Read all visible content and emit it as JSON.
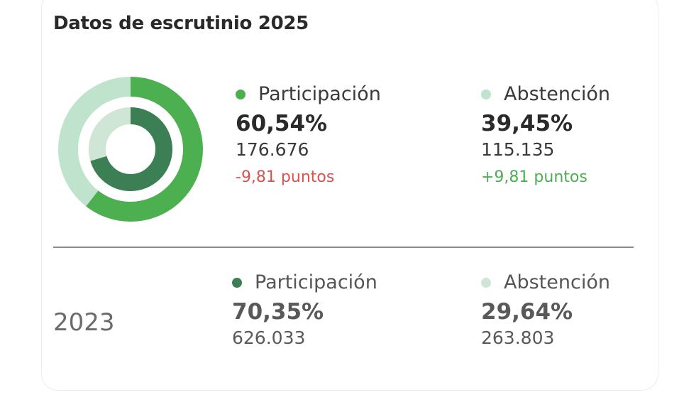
{
  "title": "Datos de escrutinio 2025",
  "colors": {
    "participacion_2025": "#4caf50",
    "abstencion_2025": "#bfe3cc",
    "participacion_2023": "#3d7f55",
    "abstencion_2023": "#cfe5d6",
    "negative": "#d2554f",
    "positive": "#4caf50"
  },
  "current": {
    "participacion": {
      "label": "Participación",
      "pct": "60,54%",
      "votes": "176.676",
      "delta": "-9,81 puntos"
    },
    "abstencion": {
      "label": "Abstención",
      "pct": "39,45%",
      "votes": "115.135",
      "delta": "+9,81 puntos"
    }
  },
  "previous": {
    "year": "2023",
    "participacion": {
      "label": "Participación",
      "pct": "70,35%",
      "votes": "626.033"
    },
    "abstencion": {
      "label": "Abstención",
      "pct": "29,64%",
      "votes": "263.803"
    }
  },
  "chart_data": {
    "type": "pie",
    "subtype": "nested-donut",
    "series": [
      {
        "name": "2025",
        "ring": "outer",
        "categories": [
          "Participación",
          "Abstención"
        ],
        "values": [
          60.54,
          39.45
        ]
      },
      {
        "name": "2023",
        "ring": "inner",
        "categories": [
          "Participación",
          "Abstención"
        ],
        "values": [
          70.35,
          29.64
        ]
      }
    ]
  }
}
